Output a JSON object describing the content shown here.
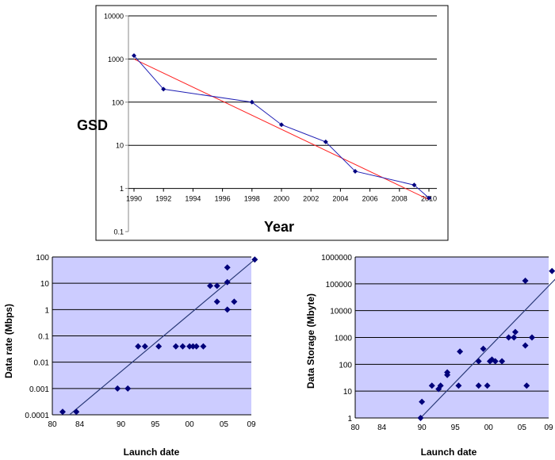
{
  "chart_data": [
    {
      "type": "line",
      "x": [
        1990,
        1992,
        1998,
        2000,
        2003,
        2005,
        2009,
        2010
      ],
      "series": [
        {
          "values": [
            1200,
            200,
            100,
            30,
            12,
            2.5,
            1.2,
            0.6
          ],
          "color": "#1f1fb4"
        }
      ],
      "trend": {
        "x": [
          1990,
          2010
        ],
        "y": [
          1000,
          0.55
        ],
        "color": "#ff2020"
      },
      "xlabel": "Year",
      "ylabel": "GSD",
      "x_ticks": [
        "1990",
        "1992",
        "1994",
        "1996",
        "1998",
        "2000",
        "2002",
        "2004",
        "2006",
        "2008",
        "2010"
      ],
      "y_ticks": [
        "10000",
        "1000",
        "100",
        "10",
        "1",
        "0.1"
      ],
      "yscale": "log",
      "ylim": [
        0.1,
        10000
      ],
      "xlim": [
        1990,
        2010
      ],
      "grid": true
    },
    {
      "type": "scatter",
      "points": [
        [
          81.5,
          0.00013
        ],
        [
          83.5,
          0.00013
        ],
        [
          89.5,
          0.001
        ],
        [
          91,
          0.001
        ],
        [
          92.5,
          0.04
        ],
        [
          93.5,
          0.04
        ],
        [
          95.5,
          0.04
        ],
        [
          98,
          0.04
        ],
        [
          99,
          0.04
        ],
        [
          100,
          0.04
        ],
        [
          100.5,
          0.04
        ],
        [
          101,
          0.04
        ],
        [
          102,
          0.04
        ],
        [
          103,
          8
        ],
        [
          104,
          8
        ],
        [
          104,
          2
        ],
        [
          105.5,
          1
        ],
        [
          105.5,
          40
        ],
        [
          105.5,
          11
        ],
        [
          106.5,
          2
        ],
        [
          109.5,
          80
        ]
      ],
      "trend": {
        "x": [
          82.5,
          109.5
        ],
        "y": [
          0.0001,
          80
        ]
      },
      "xlabel": "Launch date",
      "ylabel": "Data rate (Mbps)",
      "x_ticks": [
        "80",
        "84",
        "90",
        "95",
        "00",
        "05",
        "09"
      ],
      "y_ticks": [
        "100",
        "10",
        "1",
        "0.1",
        "0.01",
        "0.001",
        "0.0001"
      ],
      "yscale": "log",
      "ylim": [
        0.0001,
        100
      ],
      "marker_color": "#00007a",
      "background": "#ccccff",
      "grid": true
    },
    {
      "type": "scatter",
      "points": [
        [
          89.8,
          1
        ],
        [
          90,
          4
        ],
        [
          91.5,
          16
        ],
        [
          92.5,
          12
        ],
        [
          92.8,
          16
        ],
        [
          93.8,
          40
        ],
        [
          93.8,
          50
        ],
        [
          95.5,
          16
        ],
        [
          95.7,
          300
        ],
        [
          98.5,
          130
        ],
        [
          98.5,
          16
        ],
        [
          99.2,
          380
        ],
        [
          99.8,
          16
        ],
        [
          100.2,
          130
        ],
        [
          100.5,
          150
        ],
        [
          101,
          130
        ],
        [
          102,
          130
        ],
        [
          103,
          1000
        ],
        [
          103.8,
          1000
        ],
        [
          104,
          1600
        ],
        [
          105.5,
          130000
        ],
        [
          105.5,
          500
        ],
        [
          105.7,
          16
        ],
        [
          106.5,
          1000
        ],
        [
          109.5,
          300000
        ]
      ],
      "trend": {
        "x": [
          89.8,
          110
        ],
        "y": [
          1,
          150000
        ]
      },
      "xlabel": "Launch date",
      "ylabel": "Data Storage (Mbyte)",
      "x_ticks": [
        "80",
        "84",
        "90",
        "95",
        "00",
        "05",
        "09"
      ],
      "y_ticks": [
        "1000000",
        "100000",
        "10000",
        "1000",
        "100",
        "10",
        "1"
      ],
      "yscale": "log",
      "ylim": [
        1,
        1000000
      ],
      "marker_color": "#00007a",
      "background": "#ccccff",
      "grid": true
    }
  ]
}
